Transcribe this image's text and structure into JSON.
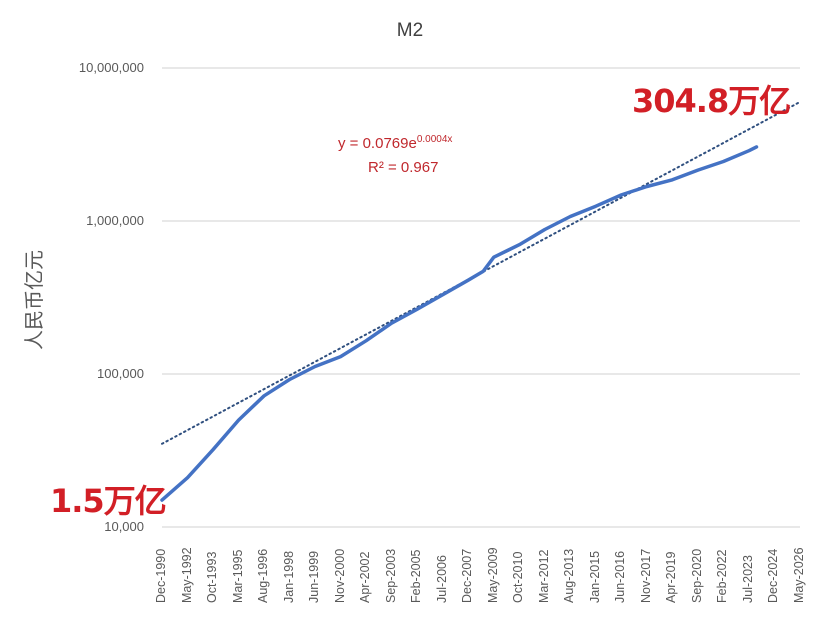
{
  "chart_data": {
    "type": "line",
    "title": "M2",
    "xlabel": "",
    "ylabel": "人民币亿元",
    "yscale": "log",
    "ylim": [
      10000,
      10000000
    ],
    "y_ticks": [
      "10,000,000",
      "1,000,000",
      "100,000",
      "10,000"
    ],
    "grid": "horizontal",
    "x_ticks": [
      "Dec-1990",
      "May-1992",
      "Oct-1993",
      "Mar-1995",
      "Aug-1996",
      "Jan-1998",
      "Jun-1999",
      "Nov-2000",
      "Apr-2002",
      "Sep-2003",
      "Feb-2005",
      "Jul-2006",
      "Dec-2007",
      "May-2009",
      "Oct-2010",
      "Mar-2012",
      "Aug-2013",
      "Jan-2015",
      "Jun-2016",
      "Nov-2017",
      "Apr-2019",
      "Sep-2020",
      "Feb-2022",
      "Jul-2023",
      "Dec-2024",
      "May-2026"
    ],
    "series": [
      {
        "name": "M2",
        "color": "#4472c4",
        "x": [
          "Dec-1990",
          "May-1992",
          "Oct-1993",
          "Mar-1995",
          "Aug-1996",
          "Jan-1998",
          "Jun-1999",
          "Nov-2000",
          "Apr-2002",
          "Sep-2003",
          "Feb-2005",
          "Jul-2006",
          "Dec-2007",
          "Oct-2008",
          "May-2009",
          "Oct-2010",
          "Mar-2012",
          "Aug-2013",
          "Jan-2015",
          "Jun-2016",
          "Nov-2017",
          "Apr-2019",
          "Sep-2020",
          "Feb-2022",
          "Jul-2023",
          "Dec-2023"
        ],
        "values": [
          15000,
          21000,
          32000,
          50000,
          72000,
          92000,
          112000,
          130000,
          165000,
          215000,
          265000,
          330000,
          410000,
          470000,
          580000,
          700000,
          880000,
          1070000,
          1250000,
          1480000,
          1680000,
          1860000,
          2150000,
          2450000,
          2880000,
          3048000
        ]
      },
      {
        "name": "Trendline (exponential)",
        "style": "dotted",
        "color": "#2f4f7f",
        "x": [
          "Dec-1990",
          "May-2026"
        ],
        "values": [
          35000,
          6000000
        ]
      }
    ],
    "annotations": [
      {
        "text": "y = 0.0769e",
        "sup": "0.0004x",
        "role": "trend-equation"
      },
      {
        "text": "R² = 0.967",
        "role": "r-squared"
      },
      {
        "text": "1.5万亿",
        "role": "start-value-label"
      },
      {
        "text": "304.8万亿",
        "role": "end-value-label"
      }
    ]
  },
  "labels": {
    "title": "M2",
    "ylabel": "人民币亿元",
    "eq_main": "y = 0.0769e",
    "eq_sup": "0.0004x",
    "r2": "R² = 0.967",
    "start_label": "1.5万亿",
    "end_label": "304.8万亿"
  },
  "colors": {
    "line": "#4472c4",
    "trend": "#2f4f7f",
    "annotation": "#d21f26",
    "grid": "#d9d9d9"
  }
}
